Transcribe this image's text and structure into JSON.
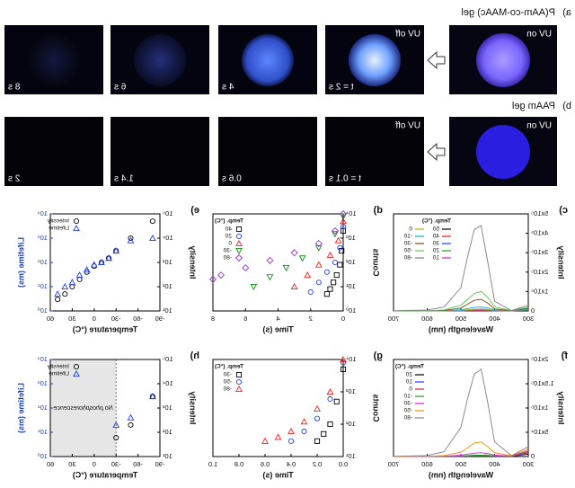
{
  "photos": {
    "a": {
      "label": "a)",
      "title": "P(AAm-co-MAAc) gel",
      "uv_on": "UV on",
      "uv_off": "UV off",
      "times": [
        "t = 2 s",
        "4 s",
        "6 s",
        "8 s"
      ]
    },
    "b": {
      "label": "b)",
      "title": "PAAm gel",
      "uv_on": "UV on",
      "uv_off": "UV off",
      "times": [
        "t = 0.1 s",
        "0.6 s",
        "1.4 s",
        "2 s"
      ]
    }
  },
  "chart_data": [
    {
      "type": "line",
      "panel": "c)",
      "x_label": "Wavelength (nm)",
      "y_label": "Intensity",
      "legend_title": "Temp. (°C)",
      "legend_columns": 2,
      "x": [
        300,
        350,
        400,
        420,
        440,
        460,
        480,
        500,
        550,
        600,
        700
      ],
      "xlim": [
        300,
        700
      ],
      "xticks": [
        300,
        400,
        500,
        600,
        700
      ],
      "ylim": [
        0,
        500000
      ],
      "yticks": [
        0,
        {
          "value": 100000,
          "label": "1x10⁵"
        },
        {
          "value": 200000,
          "label": "2x10⁵"
        },
        {
          "value": 300000,
          "label": "3x10⁵"
        },
        {
          "value": 400000,
          "label": "4x10⁵"
        },
        {
          "value": 500000,
          "label": "5x10⁵"
        }
      ],
      "series": [
        {
          "name": "50",
          "color": "#000000",
          "values": [
            2000,
            500,
            600,
            700,
            800,
            800,
            700,
            500,
            300,
            200,
            100
          ]
        },
        {
          "name": "40",
          "color": "#e41a1c",
          "values": [
            3000,
            600,
            800,
            1000,
            1200,
            1100,
            900,
            600,
            400,
            200,
            100
          ]
        },
        {
          "name": "30",
          "color": "#2040ff",
          "values": [
            4000,
            800,
            1000,
            1500,
            2000,
            1800,
            1200,
            800,
            500,
            300,
            200
          ]
        },
        {
          "name": "20",
          "color": "#20a020",
          "values": [
            5000,
            800,
            1500,
            2500,
            3000,
            2800,
            2000,
            1000,
            600,
            300,
            200
          ]
        },
        {
          "name": "10",
          "color": "#e020e0",
          "values": [
            6000,
            1000,
            2000,
            4000,
            5000,
            4500,
            3000,
            1500,
            800,
            400,
            200
          ]
        },
        {
          "name": "0",
          "color": "#b0b000",
          "values": [
            8000,
            1000,
            3000,
            8000,
            10000,
            9000,
            6000,
            3000,
            1000,
            500,
            300
          ]
        },
        {
          "name": "-10",
          "color": "#00b0d0",
          "values": [
            10000,
            1500,
            5000,
            15000,
            20000,
            18000,
            12000,
            6000,
            2000,
            800,
            400
          ]
        },
        {
          "name": "-30",
          "color": "#8b4513",
          "values": [
            15000,
            2000,
            10000,
            40000,
            60000,
            55000,
            35000,
            15000,
            3000,
            1000,
            500
          ]
        },
        {
          "name": "-50",
          "color": "#55c855",
          "values": [
            20000,
            2000,
            20000,
            70000,
            100000,
            90000,
            60000,
            30000,
            5000,
            1000,
            500
          ]
        },
        {
          "name": "-80",
          "color": "#808080",
          "values": [
            30000,
            2000,
            50000,
            250000,
            440000,
            420000,
            280000,
            120000,
            20000,
            5000,
            1000
          ]
        }
      ]
    },
    {
      "type": "scatter",
      "panel": "d)",
      "x_label": "Time (s)",
      "y_label": "Counts",
      "legend_title": "Temp. (°C)",
      "legend_columns": 1,
      "log_y": true,
      "xlim": [
        0,
        8
      ],
      "xticks": [
        0,
        2,
        4,
        6,
        8
      ],
      "ylim": [
        1,
        10000
      ],
      "yticks": [
        {
          "value": 1,
          "label": "10⁰"
        },
        {
          "value": 10,
          "label": "10¹"
        },
        {
          "value": 100,
          "label": "10²"
        },
        {
          "value": 1000,
          "label": "10³"
        },
        {
          "value": 10000,
          "label": "10⁴"
        }
      ],
      "series": [
        {
          "name": "40",
          "color": "#000000",
          "marker": "square",
          "x": [
            0,
            0.1,
            0.2,
            0.4,
            0.6,
            0.8,
            1.0
          ],
          "values": [
            2000,
            300,
            80,
            30,
            15,
            8,
            5
          ]
        },
        {
          "name": "20",
          "color": "#1f3fff",
          "marker": "circle",
          "x": [
            0,
            0.2,
            0.5,
            1,
            1.5,
            2
          ],
          "values": [
            3000,
            400,
            100,
            40,
            15,
            6
          ]
        },
        {
          "name": "0",
          "color": "#ff2020",
          "marker": "triangle",
          "x": [
            0,
            0.3,
            0.8,
            1.5,
            2.2,
            3
          ],
          "values": [
            5000,
            800,
            200,
            80,
            30,
            10
          ]
        },
        {
          "name": "-30",
          "color": "#109010",
          "marker": "triangle-down",
          "x": [
            0,
            0.5,
            1.5,
            2.5,
            3.5,
            4.5,
            5.5
          ],
          "values": [
            8000,
            1500,
            400,
            150,
            60,
            25,
            10
          ]
        },
        {
          "name": "-80",
          "color": "#9932cc",
          "marker": "diamond",
          "x": [
            0,
            0.5,
            1.5,
            3,
            4.5,
            6,
            7.5,
            8
          ],
          "values": [
            10000,
            2000,
            600,
            250,
            120,
            60,
            30,
            20
          ]
        }
      ]
    },
    {
      "type": "scatter",
      "panel": "e)",
      "x_label": "Temperature (°C)",
      "y_label": "Intensity",
      "y2_label": "Lifetime (ms)",
      "y2_color": "#1f3fbf",
      "legend_columns": 1,
      "log_y": true,
      "xlim": [
        -90,
        60
      ],
      "xticks": [
        -90,
        -60,
        -30,
        0,
        30,
        60
      ],
      "ylim": [
        10,
        100000
      ],
      "yticks": [
        {
          "value": 10,
          "label": "10¹"
        },
        {
          "value": 100,
          "label": "10²"
        },
        {
          "value": 1000,
          "label": "10³"
        },
        {
          "value": 10000,
          "label": "10⁴"
        },
        {
          "value": 100000,
          "label": "10⁵"
        }
      ],
      "y2lim": [
        1,
        10000
      ],
      "y2ticks": [
        {
          "value": 1,
          "label": "10⁰"
        },
        {
          "value": 10,
          "label": "10¹"
        },
        {
          "value": 100,
          "label": "10²"
        },
        {
          "value": 1000,
          "label": "10³"
        },
        {
          "value": 10000,
          "label": "10⁴"
        }
      ],
      "x": [
        -80,
        -50,
        -30,
        -20,
        -10,
        0,
        10,
        20,
        30,
        40,
        50
      ],
      "series": [
        {
          "name": "Intensity",
          "color": "#000000",
          "marker": "circle",
          "values": [
            50000,
            10000,
            3000,
            1500,
            1000,
            700,
            400,
            200,
            100,
            50,
            30
          ]
        },
        {
          "name": "Lifetime",
          "color": "#1f3fff",
          "marker": "triangle",
          "axis": "y2",
          "values": [
            1000,
            800,
            300,
            150,
            100,
            80,
            50,
            30,
            15,
            10,
            5
          ]
        }
      ]
    },
    {
      "type": "line",
      "panel": "f)",
      "x_label": "Wavelength (nm)",
      "y_label": "Intensity",
      "legend_title": "Temp. (°C)",
      "legend_columns": 1,
      "x": [
        300,
        350,
        400,
        420,
        440,
        460,
        480,
        500,
        550,
        600,
        700
      ],
      "xlim": [
        300,
        700
      ],
      "xticks": [
        300,
        400,
        500,
        600,
        700
      ],
      "ylim": [
        0,
        200000
      ],
      "yticks": [
        0,
        {
          "value": 50000,
          "label": "5x10⁴"
        },
        {
          "value": 100000,
          "label": "1x10⁵"
        },
        {
          "value": 150000,
          "label": "1.5x10⁵"
        },
        {
          "value": 200000,
          "label": "2x10⁵"
        }
      ],
      "series": [
        {
          "name": "20",
          "color": "#000000",
          "values": [
            5000,
            400,
            500,
            600,
            700,
            600,
            500,
            400,
            200,
            100,
            100
          ]
        },
        {
          "name": "10",
          "color": "#2040ff",
          "values": [
            6000,
            500,
            700,
            900,
            1000,
            900,
            700,
            500,
            300,
            100,
            100
          ]
        },
        {
          "name": "0",
          "color": "#e41a1c",
          "values": [
            8000,
            600,
            1000,
            1500,
            1800,
            1600,
            1200,
            800,
            400,
            200,
            100
          ]
        },
        {
          "name": "-10",
          "color": "#20a020",
          "values": [
            10000,
            800,
            1500,
            2500,
            3000,
            2800,
            2000,
            1200,
            500,
            200,
            100
          ]
        },
        {
          "name": "-30",
          "color": "#e020e0",
          "values": [
            12000,
            1000,
            3000,
            6000,
            8000,
            7000,
            5000,
            2500,
            800,
            300,
            100
          ]
        },
        {
          "name": "-50",
          "color": "#ff8c00",
          "values": [
            15000,
            1500,
            8000,
            20000,
            30000,
            28000,
            18000,
            9000,
            2000,
            500,
            200
          ]
        },
        {
          "name": "-80",
          "color": "#808080",
          "values": [
            20000,
            2000,
            30000,
            110000,
            180000,
            170000,
            120000,
            60000,
            10000,
            2000,
            500
          ]
        }
      ]
    },
    {
      "type": "scatter",
      "panel": "g)",
      "x_label": "Time (s)",
      "y_label": "Counts",
      "legend_title": "Temp. (°C)",
      "legend_columns": 1,
      "log_y": true,
      "xlim": [
        0,
        1
      ],
      "xticks": [
        {
          "value": 0,
          "label": "0.0"
        },
        0.2,
        0.4,
        0.6,
        0.8,
        {
          "value": 1,
          "label": "1.0"
        }
      ],
      "ylim": [
        10,
        10000
      ],
      "yticks": [
        {
          "value": 10,
          "label": "10¹"
        },
        {
          "value": 100,
          "label": "10²"
        },
        {
          "value": 1000,
          "label": "10³"
        },
        {
          "value": 10000,
          "label": "10⁴"
        }
      ],
      "series": [
        {
          "name": "-30",
          "color": "#000000",
          "marker": "square",
          "x": [
            0,
            0.05,
            0.1,
            0.15,
            0.2
          ],
          "values": [
            5000,
            500,
            100,
            50,
            30
          ]
        },
        {
          "name": "-50",
          "color": "#1f3fff",
          "marker": "circle",
          "x": [
            0,
            0.1,
            0.2,
            0.3,
            0.4
          ],
          "values": [
            8000,
            600,
            150,
            60,
            30
          ]
        },
        {
          "name": "-80",
          "color": "#ff2020",
          "marker": "triangle",
          "x": [
            0,
            0.1,
            0.2,
            0.3,
            0.4,
            0.5,
            0.6
          ],
          "values": [
            10000,
            1000,
            300,
            120,
            60,
            40,
            30
          ]
        }
      ]
    },
    {
      "type": "scatter",
      "panel": "h)",
      "x_label": "Temperature (°C)",
      "y_label": "Intensity",
      "y2_label": "Lifetime (ms)",
      "y2_color": "#1f3fbf",
      "legend_columns": 1,
      "log_y": true,
      "annotation": "No phosphorescence",
      "shade": [
        -30,
        60
      ],
      "xlim": [
        -90,
        60
      ],
      "xticks": [
        -90,
        -60,
        -30,
        0,
        30,
        60
      ],
      "ylim": [
        10,
        100000
      ],
      "yticks": [
        {
          "value": 10,
          "label": "10¹"
        },
        {
          "value": 100,
          "label": "10²"
        },
        {
          "value": 1000,
          "label": "10³"
        },
        {
          "value": 10000,
          "label": "10⁴"
        },
        {
          "value": 100000,
          "label": "10⁵"
        }
      ],
      "y2lim": [
        1,
        10000
      ],
      "y2ticks": [
        {
          "value": 1,
          "label": "10⁰"
        },
        {
          "value": 10,
          "label": "10¹"
        },
        {
          "value": 100,
          "label": "10²"
        },
        {
          "value": 1000,
          "label": "10³"
        },
        {
          "value": 10000,
          "label": "10⁴"
        }
      ],
      "x": [
        -80,
        -50,
        -30
      ],
      "series": [
        {
          "name": "Intensity",
          "color": "#000000",
          "marker": "circle",
          "values": [
            3000,
            200,
            60
          ]
        },
        {
          "name": "Lifetime",
          "color": "#1f3fff",
          "marker": "triangle",
          "axis": "y2",
          "values": [
            300,
            40,
            20
          ]
        }
      ]
    }
  ]
}
